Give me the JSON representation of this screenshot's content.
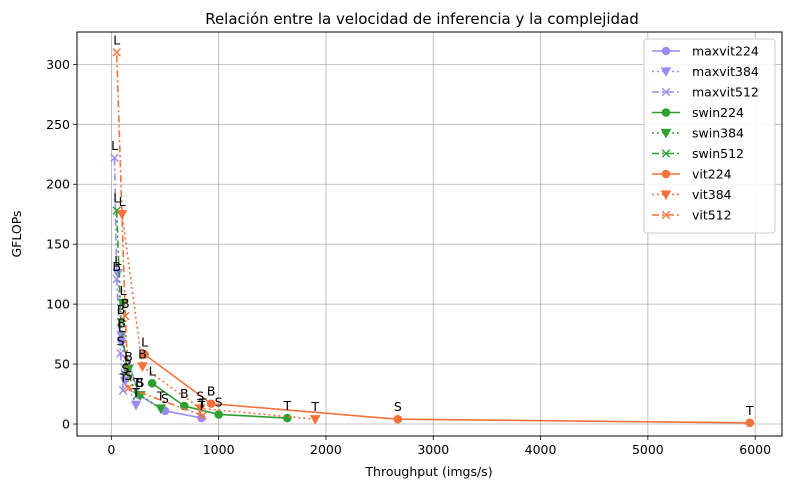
{
  "chart_data": {
    "type": "line",
    "title": "Relación entre la velocidad de inferencia y la complejidad",
    "xlabel": "Throughput (imgs/s)",
    "ylabel": "GFLOPs",
    "xlim": [
      -320,
      6250
    ],
    "ylim": [
      -10,
      327
    ],
    "xticks": [
      0,
      1000,
      2000,
      3000,
      4000,
      5000,
      6000
    ],
    "yticks": [
      0,
      50,
      100,
      150,
      200,
      250,
      300
    ],
    "grid": true,
    "legend_position": "top-right",
    "series": [
      {
        "name": "maxvit224",
        "color": "#9a8cf4",
        "linestyle": "solid",
        "marker": "circle",
        "points": [
          {
            "x": 840,
            "y": 5,
            "label": "T"
          },
          {
            "x": 500,
            "y": 11,
            "label": "S"
          },
          {
            "x": 260,
            "y": 24,
            "label": "B"
          },
          {
            "x": 95,
            "y": 70,
            "label": "L"
          }
        ]
      },
      {
        "name": "maxvit384",
        "color": "#9a8cf4",
        "linestyle": "dotted",
        "marker": "triangle",
        "points": [
          {
            "x": 230,
            "y": 16,
            "label": "T"
          },
          {
            "x": 130,
            "y": 36,
            "label": "S"
          },
          {
            "x": 95,
            "y": 74,
            "label": "B"
          },
          {
            "x": 60,
            "y": 126,
            "label": "L"
          }
        ]
      },
      {
        "name": "maxvit512",
        "color": "#9a8cf4",
        "linestyle": "dashed",
        "marker": "x",
        "points": [
          {
            "x": 110,
            "y": 28,
            "label": "T"
          },
          {
            "x": 85,
            "y": 59,
            "label": "S"
          },
          {
            "x": 50,
            "y": 121,
            "label": "B"
          },
          {
            "x": 30,
            "y": 222,
            "label": "L"
          }
        ]
      },
      {
        "name": "swin224",
        "color": "#2ca02c",
        "linestyle": "solid",
        "marker": "circle",
        "points": [
          {
            "x": 1640,
            "y": 5,
            "label": "T"
          },
          {
            "x": 1000,
            "y": 8,
            "label": "S"
          },
          {
            "x": 680,
            "y": 15,
            "label": "B"
          },
          {
            "x": 380,
            "y": 34,
            "label": "L"
          }
        ]
      },
      {
        "name": "swin384",
        "color": "#2ca02c",
        "linestyle": "dotted",
        "marker": "triangle",
        "points": [
          {
            "x": 460,
            "y": 13,
            "label": "T"
          },
          {
            "x": 270,
            "y": 24,
            "label": "S"
          },
          {
            "x": 160,
            "y": 46,
            "label": "B"
          },
          {
            "x": 110,
            "y": 101,
            "label": "L"
          }
        ]
      },
      {
        "name": "swin512",
        "color": "#2ca02c",
        "linestyle": "dashed",
        "marker": "x",
        "points": [
          {
            "x": 240,
            "y": 24,
            "label": "T"
          },
          {
            "x": 150,
            "y": 43,
            "label": "S"
          },
          {
            "x": 90,
            "y": 85,
            "label": "B"
          },
          {
            "x": 50,
            "y": 178,
            "label": "L"
          }
        ]
      },
      {
        "name": "vit224",
        "color": "#f5713b",
        "linestyle": "solid",
        "marker": "circle",
        "points": [
          {
            "x": 5950,
            "y": 1,
            "label": "T"
          },
          {
            "x": 2670,
            "y": 4,
            "label": "S"
          },
          {
            "x": 930,
            "y": 17,
            "label": "B"
          },
          {
            "x": 310,
            "y": 58,
            "label": "L"
          }
        ]
      },
      {
        "name": "vit384",
        "color": "#f5713b",
        "linestyle": "dotted",
        "marker": "triangle",
        "points": [
          {
            "x": 1900,
            "y": 4,
            "label": "T"
          },
          {
            "x": 830,
            "y": 13,
            "label": "S"
          },
          {
            "x": 290,
            "y": 48,
            "label": "B"
          },
          {
            "x": 100,
            "y": 175,
            "label": "L"
          }
        ]
      },
      {
        "name": "vit512",
        "color": "#f5713b",
        "linestyle": "dashed",
        "marker": "x",
        "points": [
          {
            "x": 850,
            "y": 7,
            "label": "T"
          },
          {
            "x": 160,
            "y": 30,
            "label": "S"
          },
          {
            "x": 130,
            "y": 90,
            "label": "B"
          },
          {
            "x": 50,
            "y": 310,
            "label": "L"
          }
        ]
      }
    ]
  }
}
